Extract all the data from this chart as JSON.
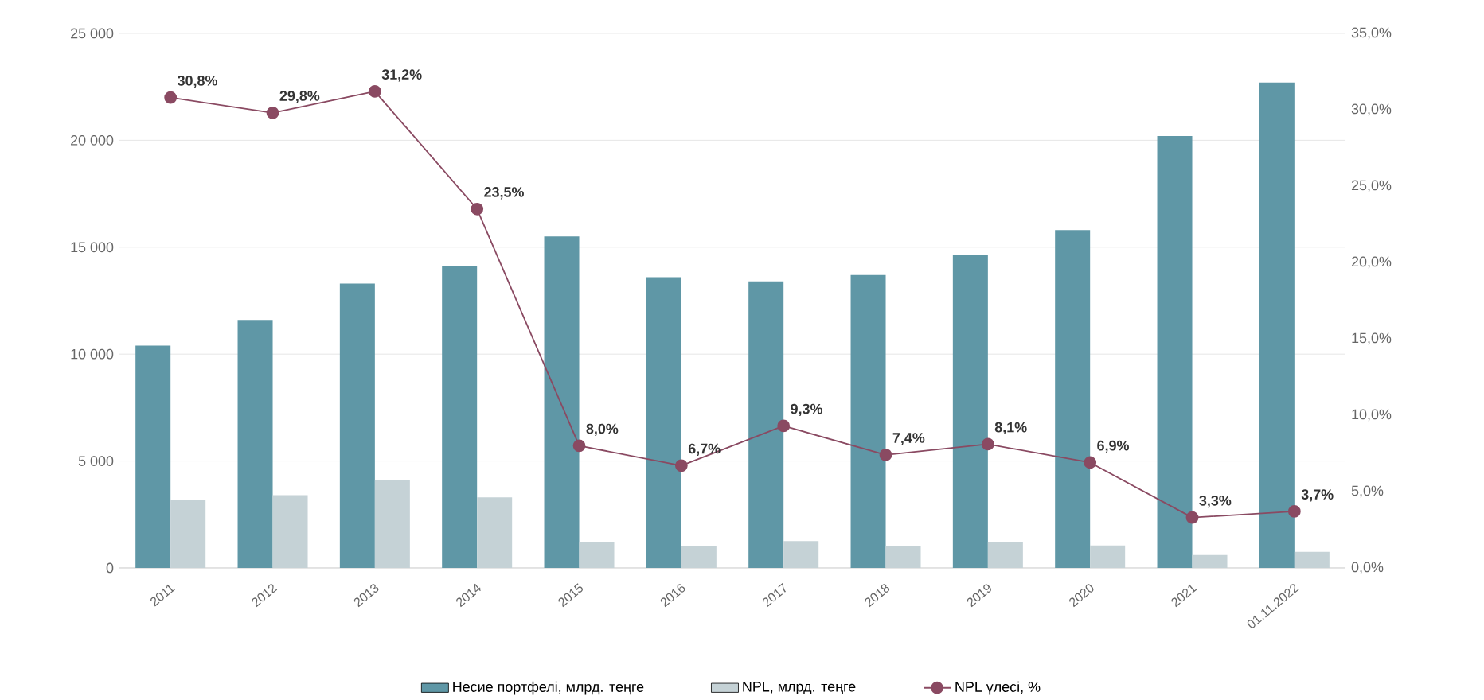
{
  "chart_data": {
    "type": "bar",
    "categories": [
      "2011",
      "2012",
      "2013",
      "2014",
      "2015",
      "2016",
      "2017",
      "2018",
      "2019",
      "2020",
      "2021",
      "01.11.2022"
    ],
    "series": [
      {
        "name": "Несие портфелі, млрд. теңге",
        "color": "#5f97a6",
        "values": [
          10400,
          11600,
          13300,
          14100,
          15500,
          13600,
          13400,
          13700,
          14650,
          15800,
          20200,
          22700
        ]
      },
      {
        "name": "NPL, млрд. теңге",
        "color": "#c5d2d6",
        "values": [
          3200,
          3400,
          4100,
          3300,
          1200,
          1000,
          1250,
          1000,
          1200,
          1050,
          600,
          750
        ]
      },
      {
        "name": "NPL үлесі, %",
        "color": "#8a4a62",
        "type": "line",
        "axis": "y2",
        "marker": "circle",
        "line_style": "solid",
        "values": [
          30.8,
          29.8,
          31.2,
          23.5,
          8.0,
          6.7,
          9.3,
          7.4,
          8.1,
          6.9,
          3.3,
          3.7
        ],
        "value_labels": [
          "30,8%",
          "29,8%",
          "31,2%",
          "23,5%",
          "8,0%",
          "6,7%",
          "9,3%",
          "7,4%",
          "8,1%",
          "6,9%",
          "3,3%",
          "3,7%"
        ]
      }
    ],
    "ylim": [
      0,
      25000
    ],
    "yticks": [
      {
        "value": 0,
        "label": "0"
      },
      {
        "value": 5000,
        "label": "5 000"
      },
      {
        "value": 10000,
        "label": "10 000"
      },
      {
        "value": 15000,
        "label": "15 000"
      },
      {
        "value": 20000,
        "label": "20 000"
      },
      {
        "value": 25000,
        "label": "25 000"
      }
    ],
    "y2lim": [
      0,
      35
    ],
    "y2ticks": [
      {
        "value": 0,
        "label": "0,0%"
      },
      {
        "value": 5,
        "label": "5,0%"
      },
      {
        "value": 10,
        "label": "10,0%"
      },
      {
        "value": 15,
        "label": "15,0%"
      },
      {
        "value": 20,
        "label": "20,0%"
      },
      {
        "value": 25,
        "label": "25,0%"
      },
      {
        "value": 30,
        "label": "30,0%"
      },
      {
        "value": 35,
        "label": "35,0%"
      }
    ],
    "grid": "y",
    "legend": "bottom"
  }
}
